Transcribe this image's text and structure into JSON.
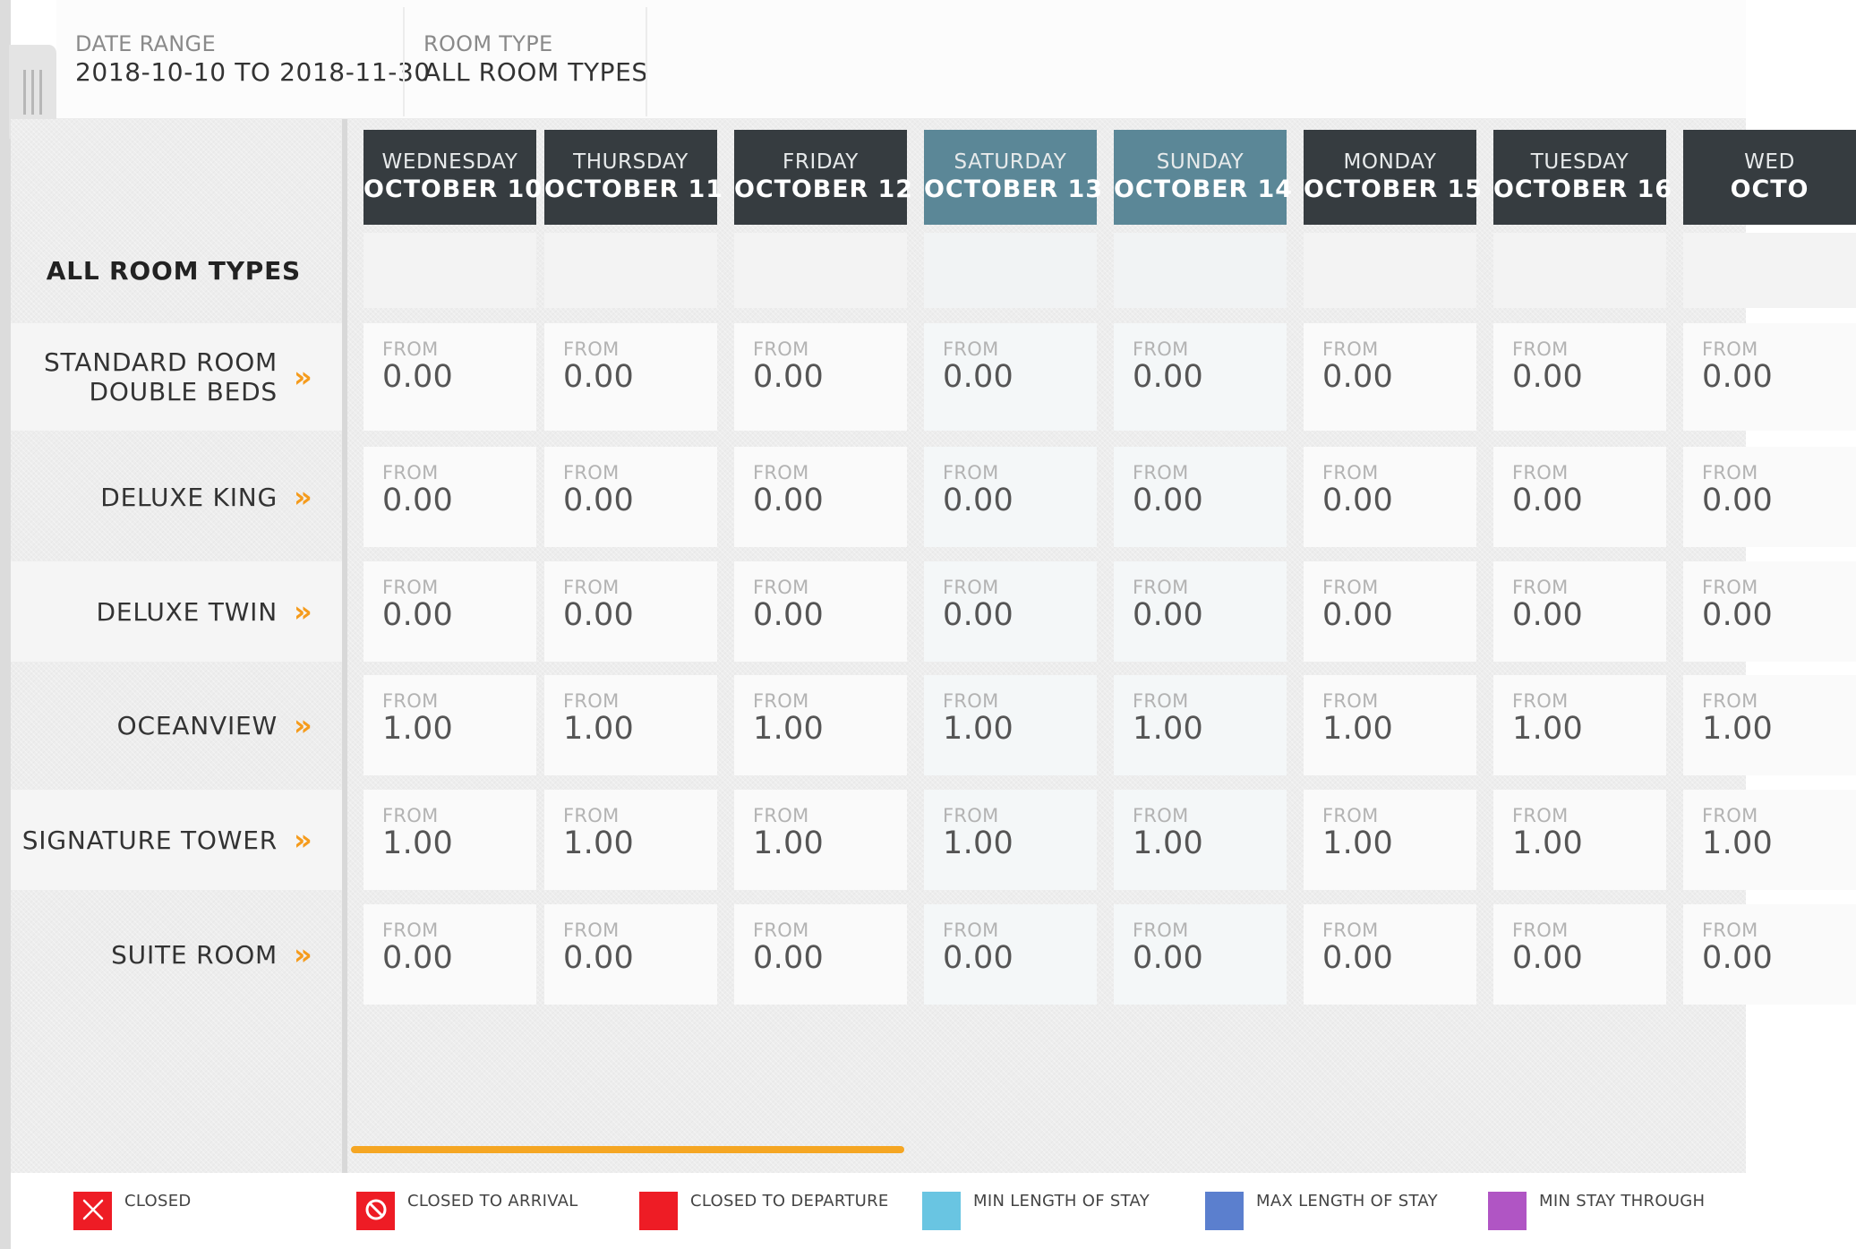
{
  "filters": {
    "date_range": {
      "label": "DATE RANGE",
      "value": "2018-10-10 TO 2018-11-30"
    },
    "room_type": {
      "label": "ROOM TYPE",
      "value": "ALL ROOM TYPES"
    }
  },
  "days": [
    {
      "dow": "WEDNESDAY",
      "date": "OCTOBER 10",
      "weekend": false
    },
    {
      "dow": "THURSDAY",
      "date": "OCTOBER 11",
      "weekend": false
    },
    {
      "dow": "FRIDAY",
      "date": "OCTOBER 12",
      "weekend": false
    },
    {
      "dow": "SATURDAY",
      "date": "OCTOBER 13",
      "weekend": true
    },
    {
      "dow": "SUNDAY",
      "date": "OCTOBER 14",
      "weekend": true
    },
    {
      "dow": "MONDAY",
      "date": "OCTOBER 15",
      "weekend": false
    },
    {
      "dow": "TUESDAY",
      "date": "OCTOBER 16",
      "weekend": false
    },
    {
      "dow": "WED",
      "date": "OCTO",
      "weekend": false
    }
  ],
  "all_room_types_label": "ALL ROOM TYPES",
  "cell_from_label": "FROM",
  "rooms": [
    {
      "name_lines": [
        "STANDARD ROOM",
        "DOUBLE BEDS"
      ],
      "prices": [
        "0.00",
        "0.00",
        "0.00",
        "0.00",
        "0.00",
        "0.00",
        "0.00",
        "0.00"
      ]
    },
    {
      "name_lines": [
        "DELUXE KING"
      ],
      "prices": [
        "0.00",
        "0.00",
        "0.00",
        "0.00",
        "0.00",
        "0.00",
        "0.00",
        "0.00"
      ]
    },
    {
      "name_lines": [
        "DELUXE TWIN"
      ],
      "prices": [
        "0.00",
        "0.00",
        "0.00",
        "0.00",
        "0.00",
        "0.00",
        "0.00",
        "0.00"
      ]
    },
    {
      "name_lines": [
        "OCEANVIEW"
      ],
      "prices": [
        "1.00",
        "1.00",
        "1.00",
        "1.00",
        "1.00",
        "1.00",
        "1.00",
        "1.00"
      ]
    },
    {
      "name_lines": [
        "SIGNATURE TOWER"
      ],
      "prices": [
        "1.00",
        "1.00",
        "1.00",
        "1.00",
        "1.00",
        "1.00",
        "1.00",
        "1.00"
      ]
    },
    {
      "name_lines": [
        "SUITE ROOM"
      ],
      "prices": [
        "0.00",
        "0.00",
        "0.00",
        "0.00",
        "0.00",
        "0.00",
        "0.00",
        "0.00"
      ]
    }
  ],
  "chevron_glyph": "»",
  "legend": [
    {
      "label": "CLOSED",
      "color": "#ee1c25",
      "icon": "x-icon"
    },
    {
      "label": "CLOSED TO ARRIVAL",
      "color": "#ee1c25",
      "icon": "no-entry-icon"
    },
    {
      "label": "CLOSED TO DEPARTURE",
      "color": "#ee1c25",
      "icon": "none"
    },
    {
      "label": "MIN LENGTH OF STAY",
      "color": "#69c5e2",
      "icon": "none"
    },
    {
      "label": "MAX LENGTH OF STAY",
      "color": "#5b7fce",
      "icon": "none"
    },
    {
      "label": "MIN STAY THROUGH",
      "color": "#b055c4",
      "icon": "none"
    }
  ],
  "colors": {
    "accent": "#f5a623",
    "chevron": "#f59b1c",
    "weekday_header": "#363c40",
    "weekend_header": "#5b8797"
  }
}
